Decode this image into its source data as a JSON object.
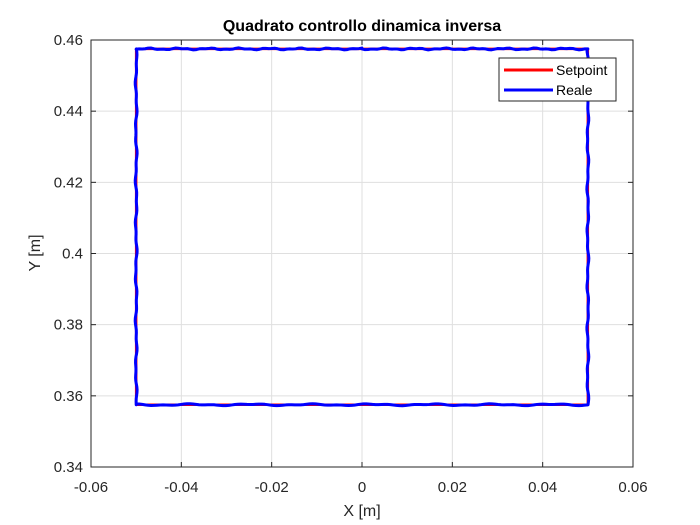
{
  "chart_data": {
    "type": "line",
    "title": "Quadrato controllo dinamica inversa",
    "xlabel": "X [m]",
    "ylabel": "Y [m]",
    "xlim": [
      -0.06,
      0.06
    ],
    "ylim": [
      0.34,
      0.46
    ],
    "xticks": [
      -0.06,
      -0.04,
      -0.02,
      0,
      0.02,
      0.04,
      0.06
    ],
    "xtick_labels": [
      "-0.06",
      "-0.04",
      "-0.02",
      "0",
      "0.02",
      "0.04",
      "0.06"
    ],
    "yticks": [
      0.34,
      0.36,
      0.38,
      0.4,
      0.42,
      0.44,
      0.46
    ],
    "ytick_labels": [
      "0.34",
      "0.36",
      "0.38",
      "0.4",
      "0.42",
      "0.44",
      "0.46"
    ],
    "grid": true,
    "legend_position": "top-right",
    "series": [
      {
        "name": "Setpoint",
        "color": "#ff0000",
        "x": [
          0,
          0.05,
          0.05,
          -0.05,
          -0.05,
          0
        ],
        "y": [
          0.4575,
          0.4575,
          0.3575,
          0.3575,
          0.4575,
          0.4575
        ]
      },
      {
        "name": "Reale",
        "color": "#0000ff",
        "x": [
          0,
          0.05,
          0.05,
          -0.05,
          -0.05,
          0
        ],
        "y": [
          0.4575,
          0.4575,
          0.3575,
          0.3575,
          0.4575,
          0.4575
        ]
      }
    ]
  }
}
